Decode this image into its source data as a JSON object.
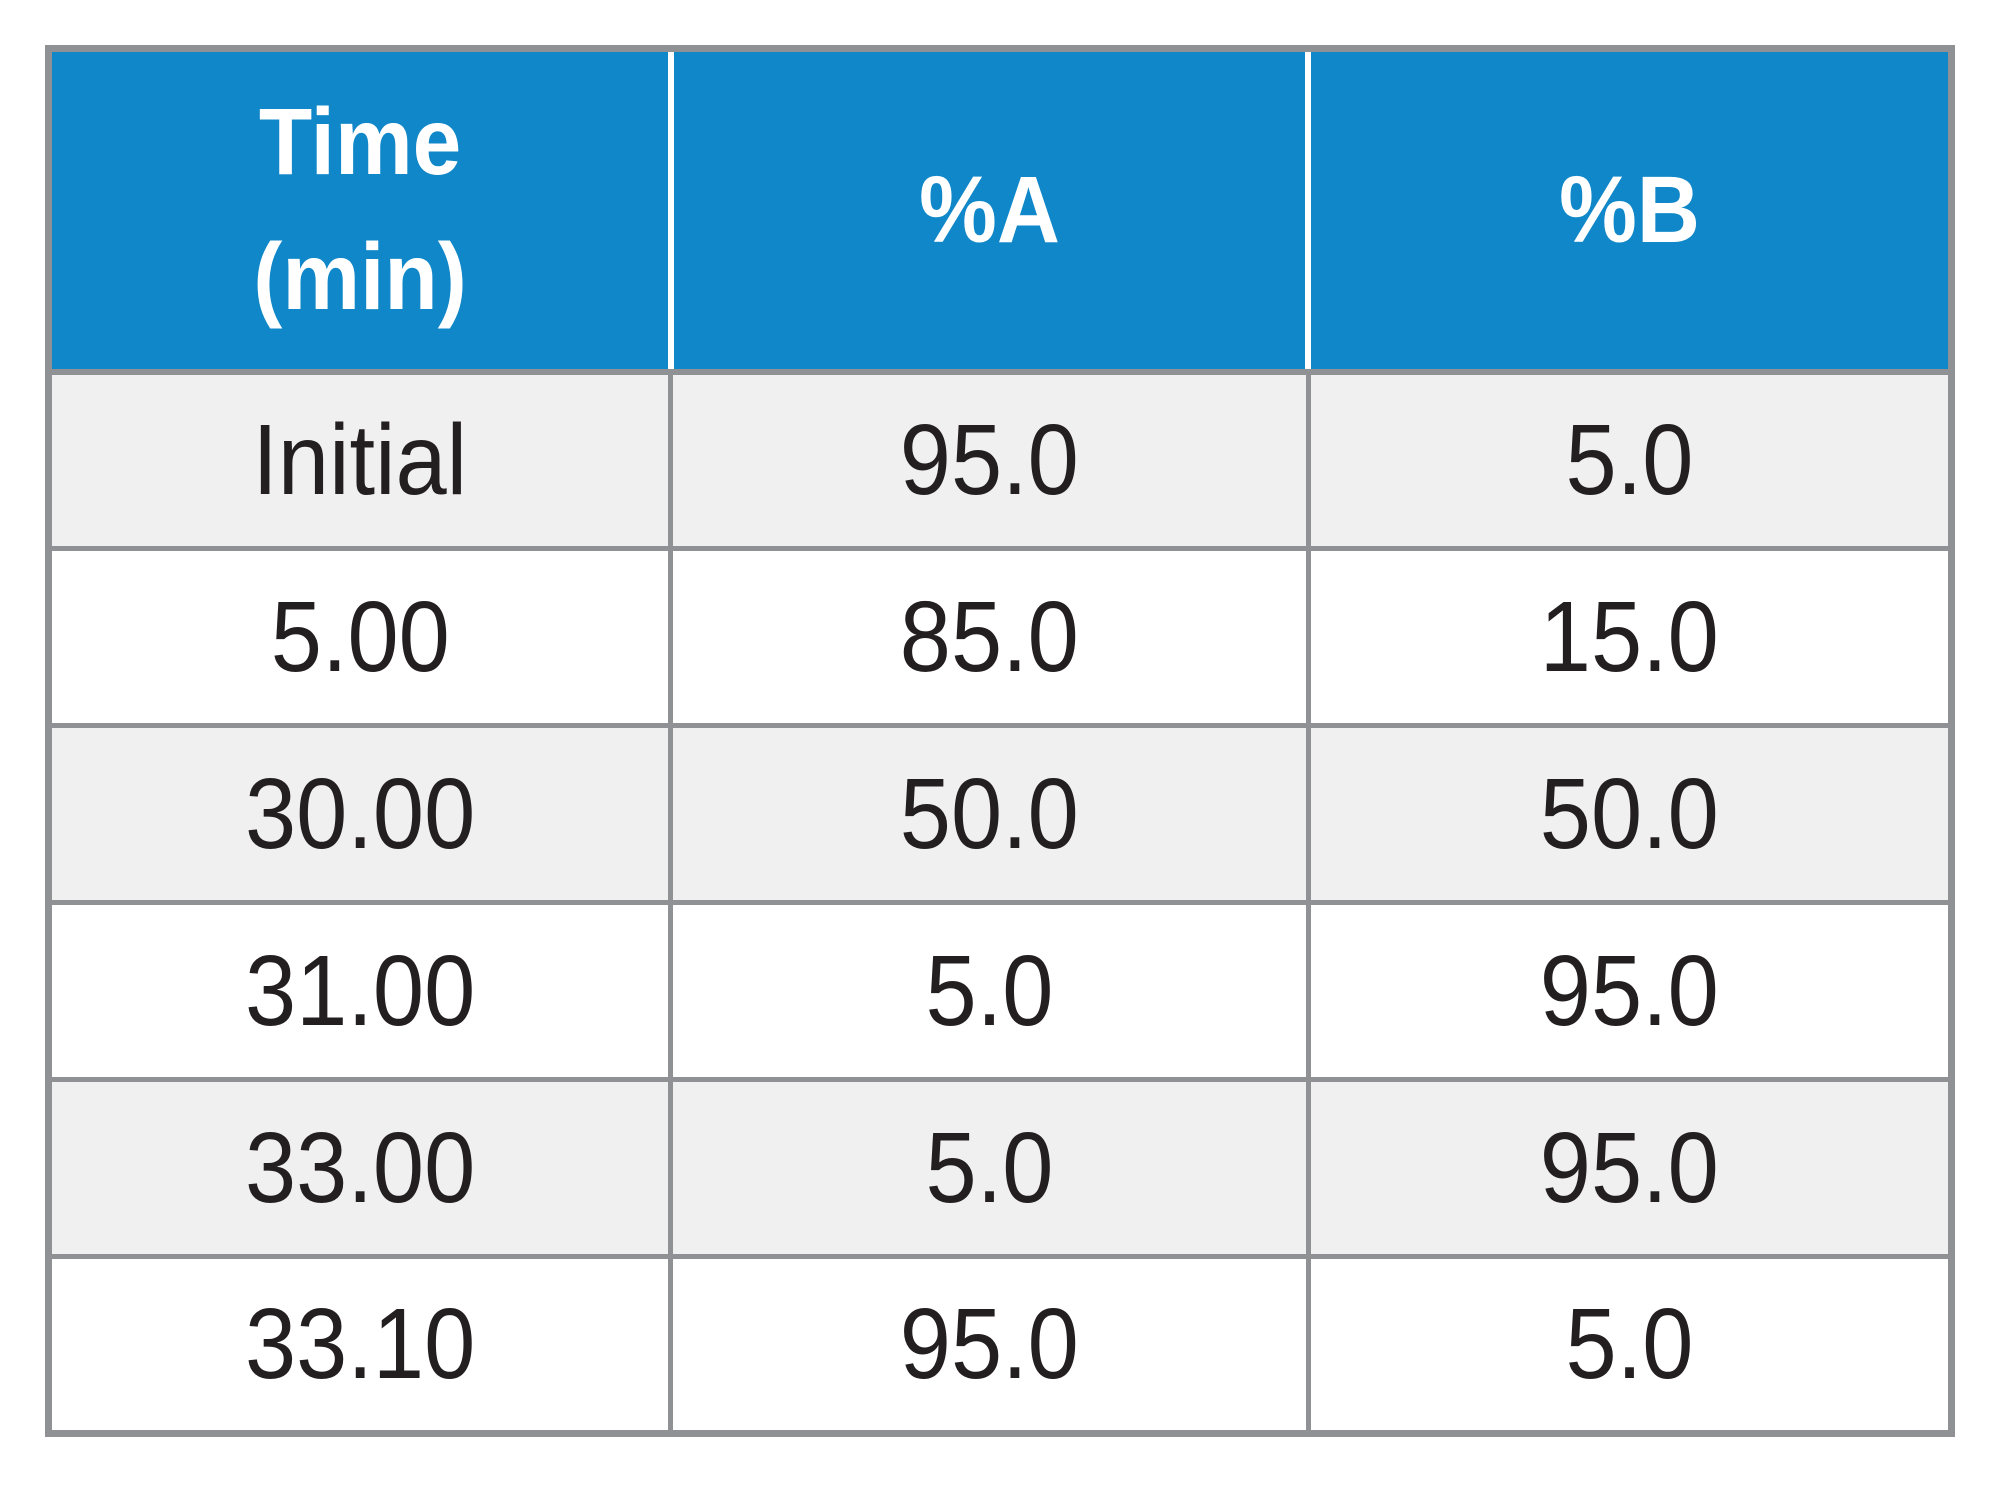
{
  "colors": {
    "header_bg": "#0f87c8",
    "header_text": "#ffffff",
    "stripe_row_bg": "#f0f0f1",
    "plain_row_bg": "#ffffff",
    "grid_border": "#8f9194",
    "body_text": "#231f20"
  },
  "table": {
    "headers": {
      "time_line1": "Time",
      "time_line2": "(min)",
      "col_a": "%A",
      "col_b": "%B"
    }
  },
  "chart_data": {
    "type": "table",
    "columns": [
      "Time (min)",
      "%A",
      "%B"
    ],
    "rows": [
      [
        "Initial",
        "95.0",
        "5.0"
      ],
      [
        "5.00",
        "85.0",
        "15.0"
      ],
      [
        "30.00",
        "50.0",
        "50.0"
      ],
      [
        "31.00",
        "5.0",
        "95.0"
      ],
      [
        "33.00",
        "5.0",
        "95.0"
      ],
      [
        "33.10",
        "95.0",
        "5.0"
      ]
    ]
  }
}
